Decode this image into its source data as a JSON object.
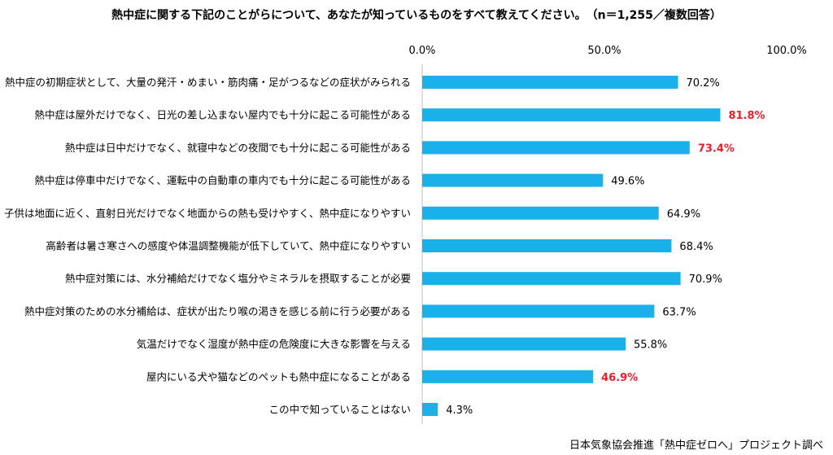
{
  "title": "熱中症に関する下記のことがらについて、あなたが知っているものをすべて教えてください。　（n＝1,255／複数回答）",
  "source": "日本気象協会推進「熱中症ゼロへ」プロジェクト調べ",
  "colors": {
    "bar": "#1ab0e8",
    "highlight": "#e8202a",
    "axis": "#bfbfbf"
  },
  "chart_data": {
    "type": "bar",
    "orientation": "horizontal",
    "xlim": [
      0,
      100
    ],
    "ticks": [
      "0.0%",
      "50.0%",
      "100.0%"
    ],
    "tick_values": [
      0,
      50,
      100
    ],
    "categories": [
      "熱中症の初期症状として、大量の発汗・めまい・筋肉痛・足がつるなどの症状がみられる",
      "熱中症は屋外だけでなく、日光の差し込まない屋内でも十分に起こる可能性がある",
      "熱中症は日中だけでなく、就寝中などの夜間でも十分に起こる可能性がある",
      "熱中症は停車中だけでなく、運転中の自動車の車内でも十分に起こる可能性がある",
      "子供は地面に近く、直射日光だけでなく地面からの熱も受けやすく、熱中症になりやすい",
      "高齢者は暑さ寒さへの感度や体温調整機能が低下していて、熱中症になりやすい",
      "熱中症対策には、水分補給だけでなく塩分やミネラルを摂取することが必要",
      "熱中症対策のための水分補給は、症状が出たり喉の渇きを感じる前に行う必要がある",
      "気温だけでなく湿度が熱中症の危険度に大きな影響を与える",
      "屋内にいる犬や猫などのペットも熱中症になることがある",
      "この中で知っていることはない"
    ],
    "values": [
      70.2,
      81.8,
      73.4,
      49.6,
      64.9,
      68.4,
      70.9,
      63.7,
      55.8,
      46.9,
      4.3
    ],
    "value_labels": [
      "70.2%",
      "81.8%",
      "73.4%",
      "49.6%",
      "64.9%",
      "68.4%",
      "70.9%",
      "63.7%",
      "55.8%",
      "46.9%",
      "4.3%"
    ],
    "highlighted": [
      false,
      true,
      true,
      false,
      false,
      false,
      false,
      false,
      false,
      true,
      false
    ]
  }
}
